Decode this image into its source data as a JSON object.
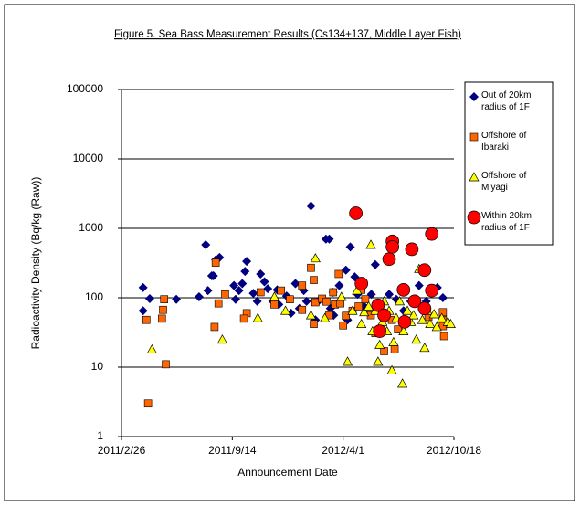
{
  "chart_data": {
    "type": "scatter",
    "title": "Figure 5. Sea Bass Measurement Results (Cs134+137, Middle Layer Fish)",
    "x_label": "Announcement Date",
    "y_label": "Radioactivity Density (Bq/kg (Raw))",
    "log_y": true,
    "grid": true,
    "legend": "right",
    "xlim": [
      "2011/2/26",
      "2012/10/18"
    ],
    "xticks": [
      "2011/2/26",
      "2011/9/14",
      "2012/4/1",
      "2012/10/18"
    ],
    "ylim": [
      1,
      100000
    ],
    "yticks": [
      1,
      10,
      100,
      1000,
      10000,
      100000
    ],
    "series": [
      {
        "name": "Out of 20km radius of 1F",
        "color": "#000080",
        "marker": "diamond",
        "x": [
          "2011/4/6",
          "2011/4/6",
          "2011/4/18",
          "2011/6/5",
          "2011/7/16",
          "2011/7/28",
          "2011/8/1",
          "2011/8/8",
          "2011/8/11",
          "2011/8/22",
          "2011/8/15",
          "2011/9/17",
          "2011/9/20",
          "2011/9/26",
          "2011/10/2",
          "2011/10/7",
          "2011/10/10",
          "2011/10/22",
          "2011/10/29",
          "2011/11/4",
          "2011/11/11",
          "2011/11/17",
          "2011/11/26",
          "2011/12/4",
          "2011/12/7",
          "2011/12/21",
          "2011/12/29",
          "2012/1/6",
          "2012/1/13",
          "2012/1/21",
          "2012/1/26",
          "2012/2/3",
          "2012/2/11",
          "2012/2/16",
          "2012/3/1",
          "2012/3/7",
          "2012/3/9",
          "2012/3/14",
          "2012/3/15",
          "2012/3/25",
          "2012/4/6",
          "2012/4/9",
          "2012/4/14",
          "2012/4/22",
          "2012/4/27",
          "2012/5/9",
          "2012/5/22",
          "2012/5/29",
          "2012/6/11",
          "2012/6/23",
          "2012/7/6",
          "2012/7/19",
          "2012/8/1",
          "2012/8/16",
          "2012/8/29",
          "2012/9/18",
          "2012/9/28"
        ],
        "values": [
          65,
          140,
          97,
          95,
          103,
          580,
          127,
          207,
          207,
          380,
          350,
          150,
          95,
          127,
          160,
          240,
          335,
          116,
          89,
          220,
          170,
          135,
          89,
          130,
          80,
          106,
          60,
          160,
          70,
          127,
          89,
          2100,
          48,
          89,
          700,
          700,
          70,
          120,
          56,
          150,
          250,
          48,
          540,
          200,
          112,
          75,
          112,
          300,
          58,
          112,
          95,
          65,
          89,
          150,
          89,
          140,
          100
        ]
      },
      {
        "name": "Offshore of Ibaraki",
        "color": "#ff6600",
        "marker": "square",
        "x": [
          "2011/4/15",
          "2011/4/12",
          "2011/5/10",
          "2011/5/12",
          "2011/5/14",
          "2011/5/17",
          "2011/8/13",
          "2011/8/20",
          "2011/8/15",
          "2011/9/1",
          "2011/10/10",
          "2011/10/5",
          "2011/11/4",
          "2011/11/29",
          "2011/12/11",
          "2011/12/27",
          "2012/1/18",
          "2012/1/18",
          "2012/2/3",
          "2012/2/8",
          "2012/2/8",
          "2012/2/11",
          "2012/2/23",
          "2012/3/2",
          "2012/3/7",
          "2012/3/14",
          "2012/3/17",
          "2012/3/24",
          "2012/3/27",
          "2012/4/1",
          "2012/4/6",
          "2012/4/18",
          "2012/4/29",
          "2012/5/4",
          "2012/5/11",
          "2012/5/21",
          "2012/5/29",
          "2012/6/14",
          "2012/6/28",
          "2012/7/3",
          "2012/7/9",
          "2012/9/2",
          "2012/9/28",
          "2012/9/28",
          "2012/9/28",
          "2012/9/30"
        ],
        "values": [
          3,
          48,
          50,
          67,
          95,
          11,
          38,
          83,
          320,
          112,
          60,
          50,
          120,
          80,
          127,
          95,
          150,
          67,
          270,
          180,
          42,
          86,
          97,
          88,
          56,
          120,
          80,
          220,
          83,
          40,
          55,
          65,
          75,
          130,
          95,
          56,
          31,
          17,
          48,
          18,
          35,
          53,
          62,
          48,
          39,
          28
        ]
      },
      {
        "name": "Offshore of Miyagi",
        "color": "#ffff00",
        "marker": "triangle",
        "x": [
          "2011/4/22",
          "2011/8/27",
          "2011/10/30",
          "2011/11/29",
          "2011/12/19",
          "2012/2/3",
          "2012/2/11",
          "2012/2/28",
          "2012/3/29",
          "2012/4/9",
          "2012/4/18",
          "2012/4/26",
          "2012/5/4",
          "2012/5/9",
          "2012/5/17",
          "2012/5/21",
          "2012/5/24",
          "2012/5/29",
          "2012/6/3",
          "2012/6/6",
          "2012/6/11",
          "2012/6/14",
          "2012/6/19",
          "2012/6/23",
          "2012/6/28",
          "2012/7/1",
          "2012/7/6",
          "2012/7/12",
          "2012/7/17",
          "2012/7/19",
          "2012/7/26",
          "2012/8/1",
          "2012/8/6",
          "2012/8/11",
          "2012/8/16",
          "2012/8/22",
          "2012/8/26",
          "2012/8/31",
          "2012/9/5",
          "2012/9/12",
          "2012/9/17",
          "2012/9/26",
          "2012/10/7",
          "2012/10/12"
        ],
        "values": [
          18,
          25,
          51,
          103,
          65,
          56,
          370,
          51,
          103,
          12,
          65,
          127,
          42,
          62,
          75,
          580,
          33,
          65,
          12,
          21,
          45,
          89,
          33,
          65,
          9,
          23,
          51,
          89,
          5.8,
          33,
          65,
          45,
          56,
          25,
          260,
          48,
          19,
          65,
          42,
          58,
          38,
          51,
          45,
          42
        ]
      },
      {
        "name": "Within 20km radius of 1F",
        "color": "#ff0000",
        "marker": "circle",
        "x": [
          "2012/4/24",
          "2012/5/4",
          "2012/6/3",
          "2012/6/6",
          "2012/6/14",
          "2012/6/23",
          "2012/6/29",
          "2012/6/29",
          "2012/7/19",
          "2012/7/21",
          "2012/8/3",
          "2012/8/8",
          "2012/8/26",
          "2012/8/26",
          "2012/9/8",
          "2012/9/8"
        ],
        "values": [
          1650,
          160,
          78,
          33,
          56,
          360,
          650,
          540,
          130,
          45,
          500,
          89,
          70,
          250,
          127,
          830
        ]
      }
    ]
  }
}
